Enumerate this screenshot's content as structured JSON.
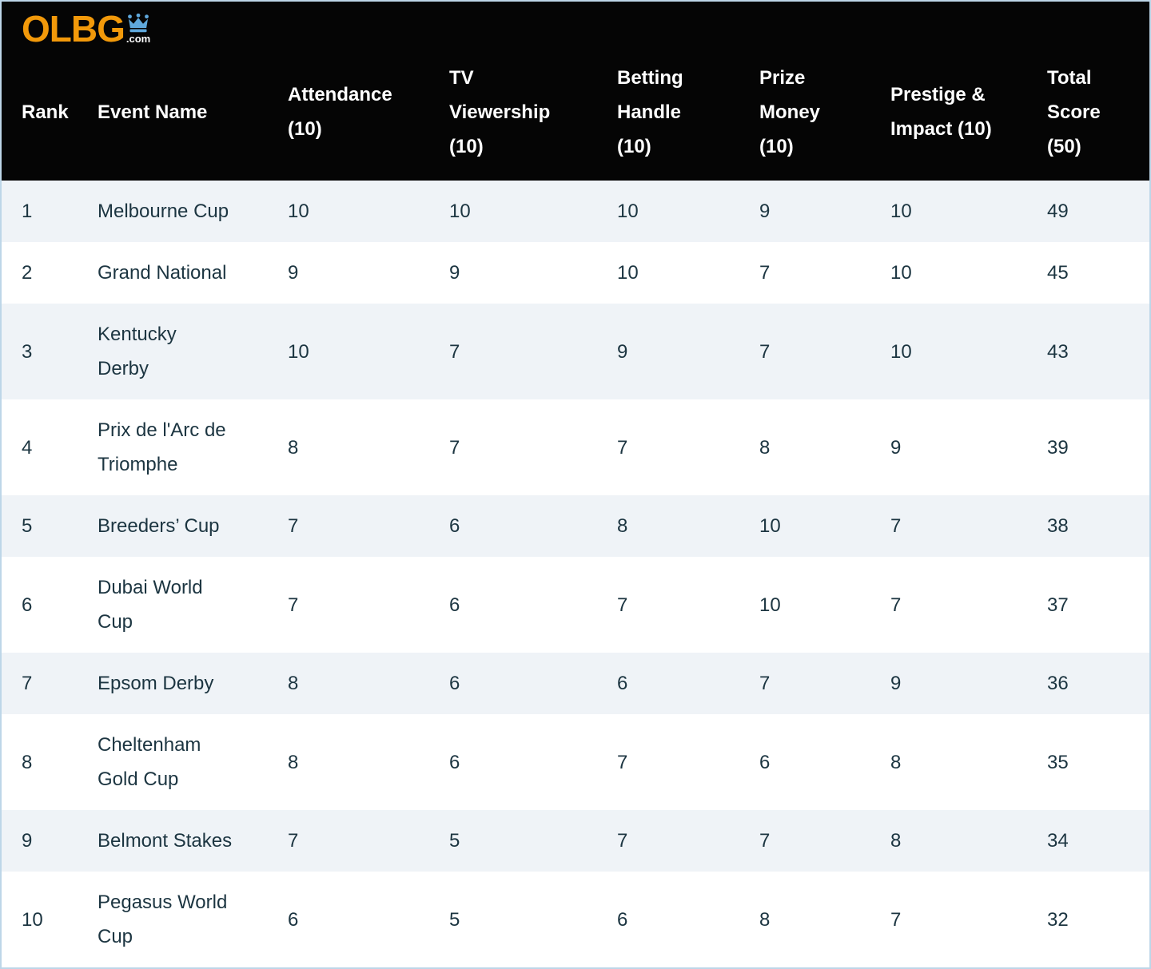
{
  "brand": {
    "logo_text": "OLBG",
    "logo_suffix": ".com",
    "logo_text_color": "#f2990a",
    "crown_color": "#5fa8dc"
  },
  "colors": {
    "header_bg": "#050505",
    "header_text": "#ffffff",
    "row_alt_bg": "#eff3f7",
    "row_bg": "#ffffff",
    "body_text": "#1c3541",
    "frame_border": "#bdd6e8"
  },
  "table": {
    "columns": [
      {
        "key": "rank",
        "label": "Rank"
      },
      {
        "key": "event",
        "label": "Event Name"
      },
      {
        "key": "attendance",
        "label": "Attendance\n(10)"
      },
      {
        "key": "tv_viewership",
        "label": "TV\nViewership\n(10)"
      },
      {
        "key": "betting_handle",
        "label": "Betting\nHandle\n(10)"
      },
      {
        "key": "prize_money",
        "label": "Prize\nMoney\n(10)"
      },
      {
        "key": "prestige_impact",
        "label": "Prestige &\nImpact (10)"
      },
      {
        "key": "total_score",
        "label": "Total\nScore\n(50)"
      }
    ],
    "rows": [
      {
        "rank": "1",
        "event": "Melbourne Cup",
        "attendance": 10,
        "tv_viewership": 10,
        "betting_handle": 10,
        "prize_money": 9,
        "prestige_impact": 10,
        "total_score": 49
      },
      {
        "rank": "2",
        "event": "Grand National",
        "attendance": 9,
        "tv_viewership": 9,
        "betting_handle": 10,
        "prize_money": 7,
        "prestige_impact": 10,
        "total_score": 45
      },
      {
        "rank": "3",
        "event": "Kentucky\nDerby",
        "attendance": 10,
        "tv_viewership": 7,
        "betting_handle": 9,
        "prize_money": 7,
        "prestige_impact": 10,
        "total_score": 43
      },
      {
        "rank": "4",
        "event": "Prix de l'Arc de\nTriomphe",
        "attendance": 8,
        "tv_viewership": 7,
        "betting_handle": 7,
        "prize_money": 8,
        "prestige_impact": 9,
        "total_score": 39
      },
      {
        "rank": "5",
        "event": "Breeders’ Cup",
        "attendance": 7,
        "tv_viewership": 6,
        "betting_handle": 8,
        "prize_money": 10,
        "prestige_impact": 7,
        "total_score": 38
      },
      {
        "rank": "6",
        "event": "Dubai World\nCup",
        "attendance": 7,
        "tv_viewership": 6,
        "betting_handle": 7,
        "prize_money": 10,
        "prestige_impact": 7,
        "total_score": 37
      },
      {
        "rank": "7",
        "event": "Epsom Derby",
        "attendance": 8,
        "tv_viewership": 6,
        "betting_handle": 6,
        "prize_money": 7,
        "prestige_impact": 9,
        "total_score": 36
      },
      {
        "rank": "8",
        "event": "Cheltenham\nGold Cup",
        "attendance": 8,
        "tv_viewership": 6,
        "betting_handle": 7,
        "prize_money": 6,
        "prestige_impact": 8,
        "total_score": 35
      },
      {
        "rank": "9",
        "event": "Belmont Stakes",
        "attendance": 7,
        "tv_viewership": 5,
        "betting_handle": 7,
        "prize_money": 7,
        "prestige_impact": 8,
        "total_score": 34
      },
      {
        "rank": "10",
        "event": "Pegasus World\nCup",
        "attendance": 6,
        "tv_viewership": 5,
        "betting_handle": 6,
        "prize_money": 8,
        "prestige_impact": 7,
        "total_score": 32
      }
    ]
  }
}
